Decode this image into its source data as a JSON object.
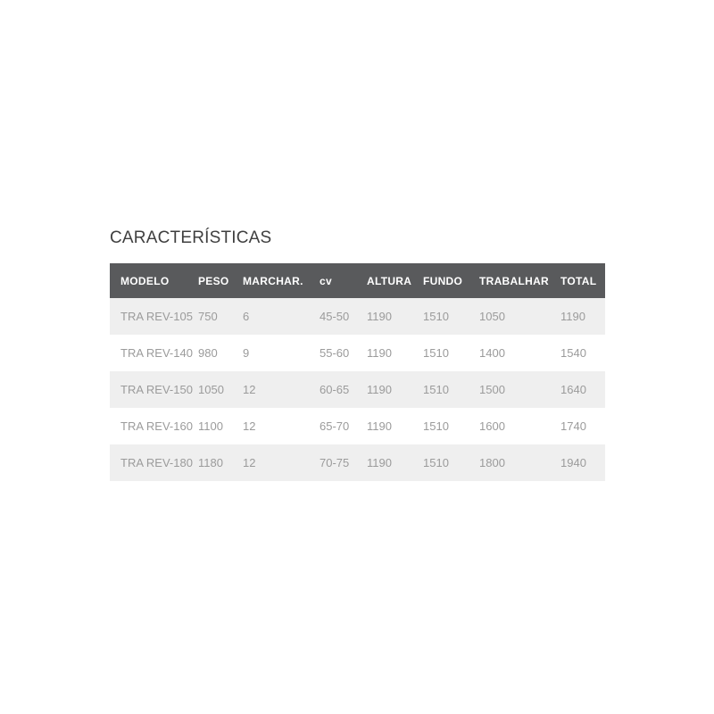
{
  "page": {
    "title": "CARACTERÍSTICAS"
  },
  "table": {
    "headers": [
      "MODELO",
      "PESO",
      "MARCHAR.",
      "cv",
      "ALTURA",
      "FUNDO",
      "TRABALHAR",
      "TOTAL"
    ],
    "rows": [
      [
        "TRA REV-105",
        "750",
        "6",
        "45-50",
        "1190",
        "1510",
        "1050",
        "1190"
      ],
      [
        "TRA REV-140",
        "980",
        "9",
        "55-60",
        "1190",
        "1510",
        "1400",
        "1540"
      ],
      [
        "TRA REV-150",
        "1050",
        "12",
        "60-65",
        "1190",
        "1510",
        "1500",
        "1640"
      ],
      [
        "TRA REV-160",
        "1100",
        "12",
        "65-70",
        "1190",
        "1510",
        "1600",
        "1740"
      ],
      [
        "TRA REV-180",
        "1180",
        "12",
        "70-75",
        "1190",
        "1510",
        "1800",
        "1940"
      ]
    ]
  },
  "colors": {
    "header_bg": "#595a5c",
    "header_text": "#ffffff",
    "row_alt_bg": "#efefef",
    "row_bg": "#ffffff",
    "cell_text": "#9b9b9b",
    "title_text": "#3f3f3f"
  }
}
